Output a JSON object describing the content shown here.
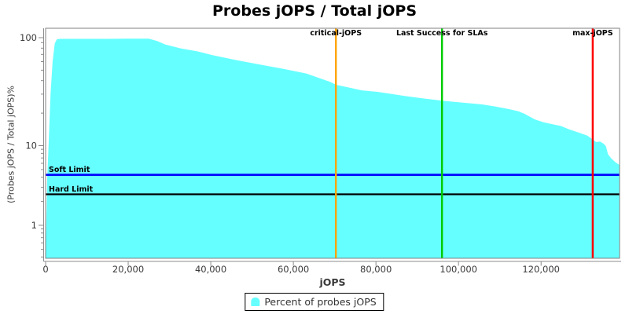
{
  "title": "Probes jOPS / Total jOPS",
  "axes": {
    "x": {
      "label": "jOPS",
      "min": 0,
      "max": 139000,
      "tick_values": [
        0,
        20000,
        40000,
        60000,
        80000,
        100000,
        120000
      ],
      "tick_labels": [
        "0",
        "20,000",
        "40,000",
        "60,000",
        "80,000",
        "100,000",
        "120,000"
      ]
    },
    "y": {
      "label": "(Probes jOPS / Total jOPS)%",
      "scale": "log",
      "min": 0.39,
      "max": 122,
      "tick_values": [
        1,
        10,
        100
      ],
      "tick_labels": [
        "1",
        "10",
        "100"
      ]
    }
  },
  "chart_data": {
    "type": "area",
    "title": "Probes jOPS / Total jOPS",
    "xlabel": "jOPS",
    "ylabel": "(Probes jOPS / Total jOPS)%",
    "x_range": [
      0,
      139000
    ],
    "y_range_log": [
      0.39,
      122
    ],
    "grid": "off",
    "legend_position": "bottom-center",
    "series": [
      {
        "name": "Percent of probes jOPS",
        "color": "#66FFFF",
        "points": [
          [
            0,
            0.4
          ],
          [
            400,
            4
          ],
          [
            800,
            12
          ],
          [
            1200,
            30
          ],
          [
            1700,
            60
          ],
          [
            2200,
            88
          ],
          [
            2700,
            96.5
          ],
          [
            3500,
            97.5
          ],
          [
            8000,
            97.5
          ],
          [
            15000,
            97.5
          ],
          [
            20000,
            97.8
          ],
          [
            25000,
            98
          ],
          [
            27000,
            93
          ],
          [
            29000,
            86.5
          ],
          [
            32800,
            79.5
          ],
          [
            36600,
            75
          ],
          [
            40400,
            69
          ],
          [
            46100,
            62
          ],
          [
            51800,
            56.5
          ],
          [
            57500,
            51.5
          ],
          [
            63200,
            46.5
          ],
          [
            69000,
            38.8
          ],
          [
            70300,
            36.6
          ],
          [
            73000,
            34.8
          ],
          [
            76600,
            32.5
          ],
          [
            80400,
            31.5
          ],
          [
            84000,
            30
          ],
          [
            88000,
            28.5
          ],
          [
            92000,
            27.2
          ],
          [
            96000,
            26.1
          ],
          [
            100000,
            25.2
          ],
          [
            105700,
            24.1
          ],
          [
            109000,
            23
          ],
          [
            112200,
            21.8
          ],
          [
            114500,
            20.8
          ],
          [
            116000,
            19.7
          ],
          [
            117300,
            18.5
          ],
          [
            118500,
            17.5
          ],
          [
            120500,
            16.5
          ],
          [
            122300,
            15.9
          ],
          [
            124800,
            15.2
          ],
          [
            126700,
            14.2
          ],
          [
            128600,
            13.4
          ],
          [
            131200,
            12.4
          ],
          [
            132500,
            11.4
          ],
          [
            133300,
            10.8
          ],
          [
            134300,
            10.9
          ],
          [
            135200,
            10.4
          ],
          [
            135700,
            9.8
          ],
          [
            136200,
            7.8
          ],
          [
            137000,
            6.9
          ],
          [
            138000,
            6.2
          ],
          [
            139000,
            5.7
          ]
        ]
      }
    ],
    "markers_vertical": [
      {
        "label": "critical-jOPS",
        "x": 70300,
        "color": "#FFA500"
      },
      {
        "label": "Last Success for SLAs",
        "x": 96000,
        "color": "#00CC00"
      },
      {
        "label": "max-jOPS",
        "x": 132500,
        "color": "#FF0000"
      }
    ],
    "markers_horizontal": [
      {
        "label": "Soft Limit",
        "y": 4.3,
        "color": "#0000FF"
      },
      {
        "label": "Hard Limit",
        "y": 2.45,
        "color": "#000000"
      }
    ]
  },
  "legend": {
    "label": "Percent of probes jOPS",
    "swatch_color": "#66FFFF"
  }
}
